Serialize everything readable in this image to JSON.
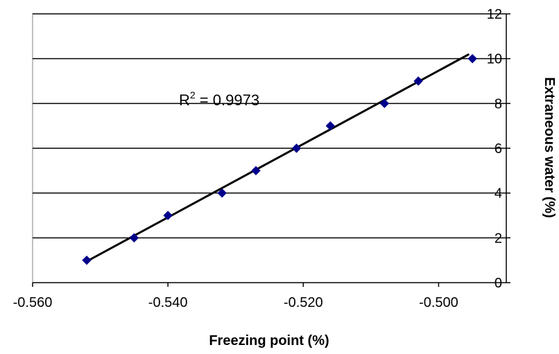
{
  "chart_data": {
    "type": "scatter",
    "xlabel": "Freezing point (%)",
    "ylabel": "Extraneous water (%)",
    "xlim": [
      -0.56,
      -0.49
    ],
    "ylim": [
      0,
      12
    ],
    "x_ticks": [
      "-0.560",
      "-0.540",
      "-0.520",
      "-0.500"
    ],
    "x_tick_values": [
      -0.56,
      -0.54,
      -0.52,
      -0.5
    ],
    "y_ticks": [
      "0",
      "2",
      "4",
      "6",
      "8",
      "10",
      "12"
    ],
    "y_tick_values": [
      0,
      2,
      4,
      6,
      8,
      10,
      12
    ],
    "grid": "horizontal",
    "y_axis_side": "right",
    "series": [
      {
        "color": "#00008b",
        "marker": "diamond",
        "x": [
          -0.552,
          -0.545,
          -0.54,
          -0.532,
          -0.527,
          -0.521,
          -0.516,
          -0.508,
          -0.503,
          -0.495
        ],
        "y": [
          1,
          2,
          3,
          4,
          5,
          6,
          7,
          8,
          9,
          10
        ]
      }
    ],
    "trendline": {
      "type": "linear",
      "color": "#000000",
      "x": [
        -0.552,
        -0.4955
      ],
      "y": [
        0.95,
        10.2
      ]
    },
    "annotation": {
      "prefix": "R",
      "superscript": "2",
      "suffix": " = 0.9973"
    }
  }
}
